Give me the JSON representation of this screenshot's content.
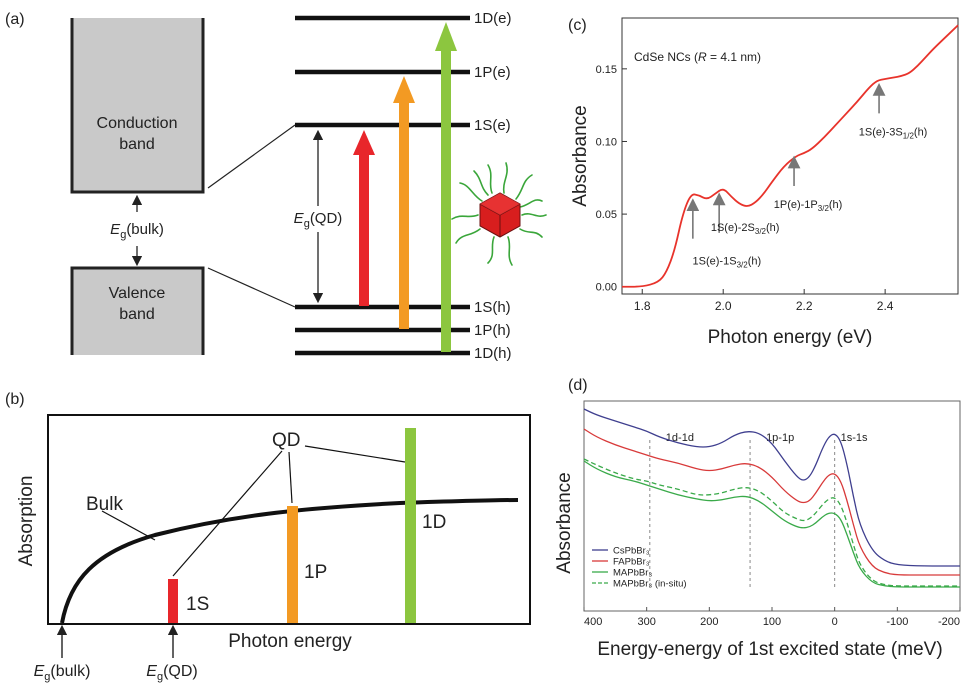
{
  "panel_a": {
    "label": "(a)",
    "conduction_band": [
      "Conduction",
      "band"
    ],
    "valence_band": [
      "Valence",
      "band"
    ],
    "eg_bulk": {
      "E": "E",
      "sub": "g",
      "rest": "(bulk)"
    },
    "eg_qd": {
      "E": "E",
      "sub": "g",
      "rest": "(QD)"
    },
    "levels_e": [
      "1D(e)",
      "1P(e)",
      "1S(e)"
    ],
    "levels_h": [
      "1S(h)",
      "1P(h)",
      "1D(h)"
    ],
    "arrow_colors": [
      "#e8262b",
      "#f39a23",
      "#8cc63f"
    ],
    "nanocrystal_color": "#d81e1e",
    "ligand_color": "#3aa63a"
  },
  "panel_b": {
    "label": "(b)",
    "ylabel": "Absorption",
    "xlabel": "Photon energy",
    "bulk_label": "Bulk",
    "qd_label": "QD",
    "bar_labels": [
      "1S",
      "1P",
      "1D"
    ],
    "eg_bulk": {
      "E": "E",
      "sub": "g",
      "rest": "(bulk)"
    },
    "eg_qd": {
      "E": "E",
      "sub": "g",
      "rest": "(QD)"
    },
    "colors": {
      "1S": "#e8262b",
      "1P": "#f39a23",
      "1D": "#8cc63f"
    }
  },
  "chart_data": [
    {
      "panel": "(c)",
      "type": "line",
      "inset_title": {
        "pre": "CdSe NCs (",
        "R": "R",
        "post": " = 4.1 nm)"
      },
      "xlabel": "Photon energy (eV)",
      "ylabel": "Absorbance",
      "xlim": [
        1.75,
        2.58
      ],
      "ylim": [
        -0.005,
        0.185
      ],
      "xticks": [
        "1.8",
        "2.0",
        "2.2",
        "2.4"
      ],
      "yticks": [
        "0.00",
        "0.05",
        "0.10",
        "0.15"
      ],
      "series": [
        {
          "color": "#e8332b",
          "x": [
            1.75,
            1.8,
            1.84,
            1.86,
            1.88,
            1.9,
            1.92,
            1.94,
            1.96,
            1.98,
            2.0,
            2.02,
            2.04,
            2.06,
            2.08,
            2.1,
            2.12,
            2.15,
            2.18,
            2.2,
            2.22,
            2.25,
            2.28,
            2.3,
            2.33,
            2.36,
            2.38,
            2.4,
            2.42,
            2.44,
            2.46,
            2.48,
            2.5,
            2.52,
            2.55,
            2.58
          ],
          "y": [
            0.0,
            0.0,
            0.003,
            0.01,
            0.025,
            0.05,
            0.064,
            0.063,
            0.06,
            0.064,
            0.068,
            0.062,
            0.057,
            0.055,
            0.058,
            0.064,
            0.072,
            0.083,
            0.09,
            0.092,
            0.095,
            0.103,
            0.112,
            0.118,
            0.127,
            0.137,
            0.142,
            0.143,
            0.144,
            0.145,
            0.147,
            0.152,
            0.158,
            0.164,
            0.172,
            0.18
          ]
        }
      ],
      "annotations": [
        {
          "base": "1S(e)-1S",
          "sub": "3/2",
          "post": "(h)",
          "x": 1.925,
          "y": 0.062
        },
        {
          "base": "1S(e)-2S",
          "sub": "3/2",
          "post": "(h)",
          "x": 1.99,
          "y": 0.066
        },
        {
          "base": "1P(e)-1P",
          "sub": "3/2",
          "post": "(h)",
          "x": 2.175,
          "y": 0.09
        },
        {
          "base": "1S(e)-3S",
          "sub": "1/2",
          "post": "(h)",
          "x": 2.385,
          "y": 0.14
        }
      ]
    },
    {
      "panel": "(d)",
      "type": "line",
      "xlabel": "Energy-energy of 1st excited state (meV)",
      "ylabel": "Absorbance",
      "xlim": [
        400,
        -200
      ],
      "xticks": [
        "400",
        "300",
        "200",
        "100",
        "0",
        "-100",
        "-200"
      ],
      "ylim": [
        0,
        1
      ],
      "peak_labels": [
        {
          "text": "1d-1d",
          "x": 295
        },
        {
          "text": "1p-1p",
          "x": 135
        },
        {
          "text": "1s-1s",
          "x": 0
        }
      ],
      "series": [
        {
          "name": "CsPbBr₃",
          "color": "#3f3f8f",
          "x": [
            400,
            380,
            350,
            320,
            300,
            280,
            250,
            220,
            200,
            180,
            160,
            140,
            120,
            100,
            80,
            60,
            50,
            40,
            30,
            20,
            10,
            0,
            -10,
            -20,
            -30,
            -40,
            -60,
            -80,
            -100,
            -140,
            -200
          ],
          "y": [
            0.96,
            0.93,
            0.9,
            0.87,
            0.85,
            0.82,
            0.79,
            0.77,
            0.77,
            0.79,
            0.83,
            0.85,
            0.84,
            0.79,
            0.7,
            0.62,
            0.6,
            0.62,
            0.68,
            0.76,
            0.82,
            0.84,
            0.8,
            0.68,
            0.52,
            0.38,
            0.25,
            0.2,
            0.18,
            0.175,
            0.175
          ]
        },
        {
          "name": "FAPbBr₃",
          "color": "#d83a3a",
          "x": [
            400,
            380,
            350,
            320,
            300,
            280,
            250,
            220,
            200,
            180,
            160,
            140,
            120,
            100,
            80,
            60,
            50,
            40,
            30,
            20,
            10,
            0,
            -10,
            -20,
            -30,
            -40,
            -60,
            -80,
            -100,
            -140,
            -200
          ],
          "y": [
            0.86,
            0.82,
            0.78,
            0.75,
            0.73,
            0.71,
            0.69,
            0.66,
            0.65,
            0.66,
            0.68,
            0.69,
            0.67,
            0.62,
            0.55,
            0.5,
            0.49,
            0.5,
            0.54,
            0.59,
            0.63,
            0.64,
            0.6,
            0.5,
            0.38,
            0.27,
            0.17,
            0.14,
            0.13,
            0.13,
            0.13
          ]
        },
        {
          "name": "MAPbBr₃",
          "color": "#3aaa4a",
          "x": [
            400,
            380,
            350,
            320,
            300,
            280,
            250,
            220,
            200,
            180,
            160,
            140,
            120,
            100,
            80,
            60,
            50,
            40,
            30,
            20,
            10,
            0,
            -10,
            -20,
            -30,
            -40,
            -60,
            -80,
            -100,
            -140,
            -200
          ],
          "y": [
            0.7,
            0.66,
            0.62,
            0.6,
            0.58,
            0.56,
            0.53,
            0.51,
            0.5,
            0.505,
            0.52,
            0.525,
            0.5,
            0.45,
            0.4,
            0.37,
            0.365,
            0.37,
            0.39,
            0.42,
            0.44,
            0.44,
            0.41,
            0.33,
            0.24,
            0.16,
            0.09,
            0.075,
            0.07,
            0.07,
            0.07
          ]
        },
        {
          "name": "MAPbBr₃ (in-situ)",
          "color": "#3aaa4a",
          "dashed": true,
          "x": [
            400,
            380,
            350,
            320,
            300,
            280,
            250,
            220,
            200,
            180,
            160,
            140,
            120,
            100,
            80,
            60,
            50,
            40,
            30,
            20,
            10,
            0,
            -10,
            -20,
            -30,
            -40,
            -60,
            -80,
            -100,
            -140,
            -200
          ],
          "y": [
            0.71,
            0.68,
            0.64,
            0.61,
            0.6,
            0.58,
            0.56,
            0.53,
            0.53,
            0.54,
            0.56,
            0.57,
            0.55,
            0.5,
            0.44,
            0.41,
            0.4,
            0.41,
            0.44,
            0.48,
            0.51,
            0.52,
            0.48,
            0.39,
            0.28,
            0.18,
            0.1,
            0.08,
            0.075,
            0.075,
            0.075
          ]
        }
      ]
    }
  ]
}
